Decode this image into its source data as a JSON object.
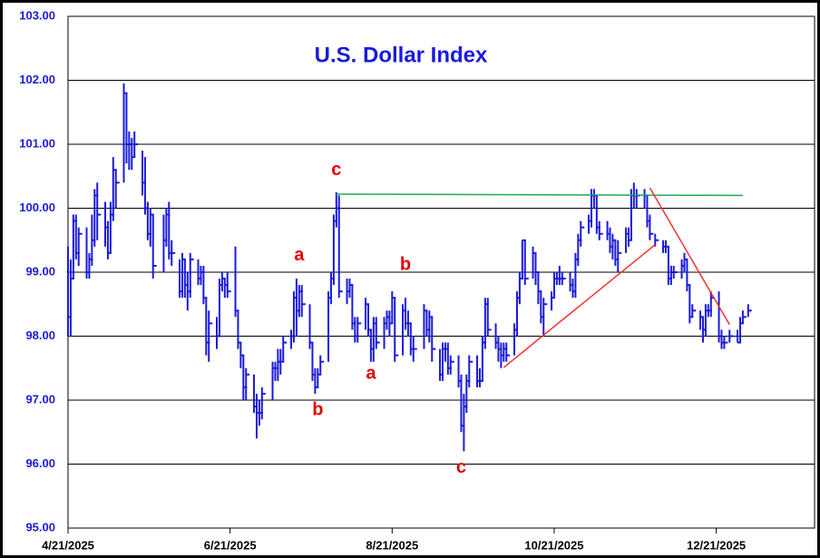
{
  "chart_data": {
    "type": "hlc",
    "title": "U.S. Dollar Index",
    "title_color": "#1a1adb",
    "color": "#1a1adb",
    "grid": true,
    "xlim": [
      "2025-04-21",
      "2026-01-27"
    ],
    "xticks": [
      {
        "value": "2025-04-21",
        "label": "4/21/2025"
      },
      {
        "value": "2025-06-21",
        "label": "6/21/2025"
      },
      {
        "value": "2025-08-21",
        "label": "8/21/2025"
      },
      {
        "value": "2025-10-21",
        "label": "10/21/2025"
      },
      {
        "value": "2025-12-21",
        "label": "12/21/2025"
      }
    ],
    "ylim": [
      95,
      103
    ],
    "yticks": [
      {
        "value": 95,
        "label": "95.00"
      },
      {
        "value": 96,
        "label": "96.00"
      },
      {
        "value": 97,
        "label": "97.00"
      },
      {
        "value": 98,
        "label": "98.00"
      },
      {
        "value": 99,
        "label": "99.00"
      },
      {
        "value": 100,
        "label": "100.00"
      },
      {
        "value": 101,
        "label": "101.00"
      },
      {
        "value": 102,
        "label": "102.00"
      },
      {
        "value": 103,
        "label": "103.00"
      }
    ],
    "x": [
      "2025-04-21",
      "2025-04-22",
      "2025-04-23",
      "2025-04-24",
      "2025-04-25",
      "2025-04-28",
      "2025-04-29",
      "2025-04-30",
      "2025-05-01",
      "2025-05-02",
      "2025-05-05",
      "2025-05-06",
      "2025-05-07",
      "2025-05-08",
      "2025-05-09",
      "2025-05-12",
      "2025-05-13",
      "2025-05-14",
      "2025-05-15",
      "2025-05-16",
      "2025-05-19",
      "2025-05-20",
      "2025-05-21",
      "2025-05-22",
      "2025-05-23",
      "2025-05-27",
      "2025-05-28",
      "2025-05-29",
      "2025-05-30",
      "2025-06-02",
      "2025-06-03",
      "2025-06-04",
      "2025-06-05",
      "2025-06-06",
      "2025-06-09",
      "2025-06-10",
      "2025-06-11",
      "2025-06-12",
      "2025-06-13",
      "2025-06-16",
      "2025-06-17",
      "2025-06-18",
      "2025-06-19",
      "2025-06-20",
      "2025-06-23",
      "2025-06-24",
      "2025-06-25",
      "2025-06-26",
      "2025-06-27",
      "2025-06-30",
      "2025-07-01",
      "2025-07-02",
      "2025-07-03",
      "2025-07-07",
      "2025-07-08",
      "2025-07-09",
      "2025-07-10",
      "2025-07-11",
      "2025-07-14",
      "2025-07-15",
      "2025-07-16",
      "2025-07-17",
      "2025-07-18",
      "2025-07-21",
      "2025-07-22",
      "2025-07-23",
      "2025-07-24",
      "2025-07-25",
      "2025-07-28",
      "2025-07-29",
      "2025-07-30",
      "2025-07-31",
      "2025-08-01",
      "2025-08-04",
      "2025-08-05",
      "2025-08-06",
      "2025-08-07",
      "2025-08-08",
      "2025-08-11",
      "2025-08-12",
      "2025-08-13",
      "2025-08-14",
      "2025-08-15",
      "2025-08-18",
      "2025-08-19",
      "2025-08-20",
      "2025-08-21",
      "2025-08-22",
      "2025-08-25",
      "2025-08-26",
      "2025-08-27",
      "2025-08-28",
      "2025-08-29",
      "2025-09-02",
      "2025-09-03",
      "2025-09-04",
      "2025-09-05",
      "2025-09-08",
      "2025-09-09",
      "2025-09-10",
      "2025-09-11",
      "2025-09-12",
      "2025-09-15",
      "2025-09-16",
      "2025-09-17",
      "2025-09-18",
      "2025-09-19",
      "2025-09-22",
      "2025-09-23",
      "2025-09-24",
      "2025-09-25",
      "2025-09-26",
      "2025-09-29",
      "2025-09-30",
      "2025-10-01",
      "2025-10-02",
      "2025-10-03",
      "2025-10-06",
      "2025-10-07",
      "2025-10-08",
      "2025-10-09",
      "2025-10-10",
      "2025-10-13",
      "2025-10-14",
      "2025-10-15",
      "2025-10-16",
      "2025-10-17",
      "2025-10-20",
      "2025-10-21",
      "2025-10-22",
      "2025-10-23",
      "2025-10-24",
      "2025-10-27",
      "2025-10-28",
      "2025-10-29",
      "2025-10-30",
      "2025-10-31",
      "2025-11-03",
      "2025-11-04",
      "2025-11-05",
      "2025-11-06",
      "2025-11-07",
      "2025-11-10",
      "2025-11-11",
      "2025-11-12",
      "2025-11-13",
      "2025-11-14",
      "2025-11-17",
      "2025-11-18",
      "2025-11-19",
      "2025-11-20",
      "2025-11-21",
      "2025-11-24",
      "2025-11-25",
      "2025-11-26",
      "2025-11-28",
      "2025-12-01",
      "2025-12-02",
      "2025-12-03",
      "2025-12-04",
      "2025-12-05",
      "2025-12-08",
      "2025-12-09",
      "2025-12-10",
      "2025-12-11",
      "2025-12-12",
      "2025-12-15",
      "2025-12-16",
      "2025-12-17",
      "2025-12-18",
      "2025-12-19",
      "2025-12-22",
      "2025-12-23",
      "2025-12-24",
      "2025-12-26",
      "2025-12-29",
      "2025-12-30",
      "2025-12-31",
      "2026-01-02"
    ],
    "high": [
      99.4,
      99.2,
      99.9,
      99.9,
      99.7,
      99.7,
      99.3,
      99.9,
      100.3,
      100.4,
      100.1,
      99.8,
      100.1,
      100.8,
      100.6,
      101.95,
      101.8,
      101.2,
      101.1,
      101.2,
      100.9,
      100.8,
      100.1,
      100.0,
      99.9,
      99.9,
      100.0,
      100.1,
      99.5,
      99.2,
      99.3,
      99.2,
      99.0,
      99.3,
      99.2,
      99.1,
      99.1,
      98.6,
      98.4,
      98.3,
      98.9,
      99.0,
      98.9,
      99.0,
      99.4,
      98.4,
      97.9,
      97.7,
      97.5,
      97.4,
      97.1,
      97.0,
      97.2,
      97.6,
      97.6,
      97.8,
      97.8,
      98.0,
      98.1,
      98.7,
      98.9,
      98.8,
      98.8,
      98.5,
      97.9,
      97.5,
      97.5,
      97.7,
      98.7,
      99.0,
      99.9,
      100.25,
      100.2,
      98.9,
      98.9,
      98.8,
      98.3,
      98.3,
      98.6,
      98.5,
      98.1,
      98.3,
      98.3,
      98.3,
      98.4,
      98.4,
      98.7,
      98.6,
      98.5,
      98.6,
      98.4,
      98.2,
      98.0,
      98.5,
      98.4,
      98.4,
      98.3,
      97.8,
      97.9,
      97.9,
      97.9,
      97.7,
      97.7,
      97.4,
      97.1,
      97.4,
      97.7,
      97.7,
      97.5,
      98.0,
      98.6,
      98.6,
      98.2,
      98.0,
      97.9,
      97.9,
      97.9,
      98.2,
      98.7,
      99.0,
      99.5,
      99.5,
      99.4,
      99.3,
      99.0,
      98.7,
      98.6,
      98.7,
      99.0,
      99.0,
      99.1,
      99.0,
      99.0,
      98.9,
      99.3,
      99.6,
      99.8,
      99.9,
      100.3,
      100.3,
      100.2,
      99.8,
      99.8,
      99.7,
      99.6,
      99.5,
      99.5,
      99.7,
      99.7,
      100.3,
      100.4,
      100.3,
      100.3,
      100.2,
      99.9,
      99.6,
      99.5,
      99.5,
      99.4,
      99.1,
      99.1,
      99.2,
      99.3,
      99.2,
      98.8,
      98.5,
      98.4,
      98.3,
      98.5,
      98.5,
      98.7,
      98.7,
      98.1,
      98.0,
      98.1,
      98.1,
      98.3,
      98.4,
      98.5
    ],
    "low": [
      98.0,
      98.0,
      98.9,
      99.2,
      99.1,
      98.9,
      98.9,
      99.1,
      99.4,
      99.5,
      99.4,
      99.2,
      99.3,
      99.8,
      100.0,
      100.4,
      100.7,
      100.6,
      100.6,
      100.8,
      100.2,
      99.9,
      99.5,
      99.4,
      98.9,
      99.0,
      99.4,
      99.2,
      99.1,
      98.6,
      98.6,
      98.6,
      98.4,
      98.6,
      98.8,
      98.8,
      98.5,
      97.7,
      97.6,
      97.8,
      98.0,
      98.7,
      98.6,
      98.6,
      98.3,
      97.8,
      97.5,
      97.0,
      97.0,
      96.8,
      96.4,
      96.6,
      96.7,
      97.0,
      97.3,
      97.3,
      97.4,
      97.6,
      97.8,
      97.9,
      98.0,
      98.3,
      98.3,
      97.8,
      97.3,
      97.1,
      97.2,
      97.4,
      97.6,
      98.5,
      98.8,
      99.7,
      98.6,
      98.5,
      98.6,
      98.1,
      97.9,
      97.9,
      98.1,
      98.0,
      97.6,
      97.6,
      97.8,
      97.8,
      98.1,
      98.0,
      98.2,
      97.6,
      97.7,
      98.1,
      98.0,
      97.7,
      97.6,
      97.8,
      98.0,
      97.9,
      97.6,
      97.3,
      97.3,
      97.6,
      97.4,
      97.4,
      97.2,
      96.5,
      96.2,
      96.8,
      97.2,
      97.2,
      97.2,
      97.3,
      97.8,
      98.0,
      97.8,
      97.6,
      97.5,
      97.6,
      97.6,
      97.7,
      98.0,
      98.5,
      98.9,
      98.8,
      98.9,
      98.8,
      98.5,
      98.2,
      98.0,
      98.4,
      98.6,
      98.8,
      98.8,
      98.8,
      98.7,
      98.6,
      98.6,
      99.1,
      99.4,
      99.6,
      99.7,
      100.0,
      99.6,
      99.5,
      99.5,
      99.3,
      99.2,
      99.1,
      99.0,
      99.3,
      99.4,
      99.5,
      100.0,
      100.0,
      100.0,
      99.7,
      99.5,
      99.4,
      99.3,
      99.3,
      98.8,
      98.8,
      98.9,
      98.9,
      99.0,
      98.7,
      98.2,
      98.3,
      98.1,
      97.9,
      98.0,
      98.3,
      98.3,
      97.9,
      97.8,
      97.8,
      97.9,
      97.9,
      97.9,
      98.2,
      98.3
    ],
    "close": [
      98.3,
      98.9,
      99.8,
      99.3,
      99.6,
      99.0,
      99.2,
      99.5,
      100.2,
      99.9,
      99.7,
      99.3,
      99.9,
      100.6,
      100.4,
      101.8,
      101.0,
      101.0,
      100.8,
      101.0,
      100.4,
      100.0,
      99.6,
      99.9,
      99.1,
      99.5,
      99.9,
      99.3,
      99.3,
      98.7,
      99.2,
      98.8,
      98.7,
      99.2,
      98.9,
      99.0,
      98.6,
      97.9,
      98.2,
      98.0,
      98.8,
      98.9,
      98.8,
      98.7,
      98.4,
      97.9,
      97.7,
      97.2,
      97.4,
      96.9,
      96.8,
      96.8,
      97.1,
      97.5,
      97.5,
      97.6,
      97.6,
      97.9,
      98.0,
      98.6,
      98.4,
      98.7,
      98.5,
      97.9,
      97.4,
      97.2,
      97.4,
      97.6,
      98.6,
      98.9,
      99.8,
      100.0,
      98.7,
      98.7,
      98.8,
      98.2,
      98.0,
      98.2,
      98.5,
      98.1,
      97.8,
      98.2,
      97.9,
      98.2,
      98.3,
      98.2,
      98.6,
      97.7,
      98.4,
      98.2,
      98.2,
      97.8,
      97.8,
      98.4,
      98.1,
      98.3,
      97.8,
      97.4,
      97.8,
      97.8,
      97.5,
      97.6,
      97.3,
      96.6,
      96.9,
      97.3,
      97.6,
      97.3,
      97.3,
      97.9,
      98.5,
      98.1,
      97.9,
      97.8,
      97.7,
      97.8,
      97.7,
      98.1,
      98.6,
      98.9,
      99.5,
      98.9,
      99.3,
      99.0,
      98.7,
      98.3,
      98.5,
      98.6,
      98.9,
      98.9,
      98.9,
      98.9,
      98.8,
      98.7,
      99.2,
      99.5,
      99.7,
      99.8,
      100.2,
      100.2,
      99.7,
      99.6,
      99.6,
      99.4,
      99.5,
      99.2,
      99.3,
      99.6,
      99.5,
      100.2,
      100.2,
      100.2,
      100.2,
      99.8,
      99.6,
      99.5,
      99.4,
      99.4,
      98.9,
      99.0,
      99.0,
      99.1,
      99.2,
      98.8,
      98.3,
      98.4,
      98.3,
      98.1,
      98.4,
      98.4,
      98.6,
      98.0,
      97.9,
      97.9,
      98.0,
      97.9,
      98.2,
      98.3,
      98.4
    ],
    "annotations": [
      {
        "text": "c",
        "x": "2025-07-31",
        "y": 100.59,
        "color": "#e00000"
      },
      {
        "text": "a",
        "x": "2025-07-17",
        "y": 99.26,
        "color": "#e00000"
      },
      {
        "text": "b",
        "x": "2025-07-24",
        "y": 96.84,
        "color": "#e00000"
      },
      {
        "text": "a",
        "x": "2025-08-13",
        "y": 97.41,
        "color": "#e00000"
      },
      {
        "text": "b",
        "x": "2025-08-26",
        "y": 99.11,
        "color": "#e00000"
      },
      {
        "text": "c",
        "x": "2025-09-16",
        "y": 95.94,
        "color": "#e00000"
      }
    ],
    "trendlines": [
      {
        "color": "#1fa85a",
        "x": [
          "2025-07-31",
          "2025-12-31"
        ],
        "y": [
          100.22,
          100.2
        ]
      },
      {
        "color": "#ee3333",
        "x": [
          "2025-10-02",
          "2025-11-28"
        ],
        "y": [
          97.51,
          99.43
        ]
      },
      {
        "color": "#ee3333",
        "x": [
          "2025-11-26",
          "2025-12-26"
        ],
        "y": [
          100.32,
          98.18
        ]
      }
    ]
  }
}
